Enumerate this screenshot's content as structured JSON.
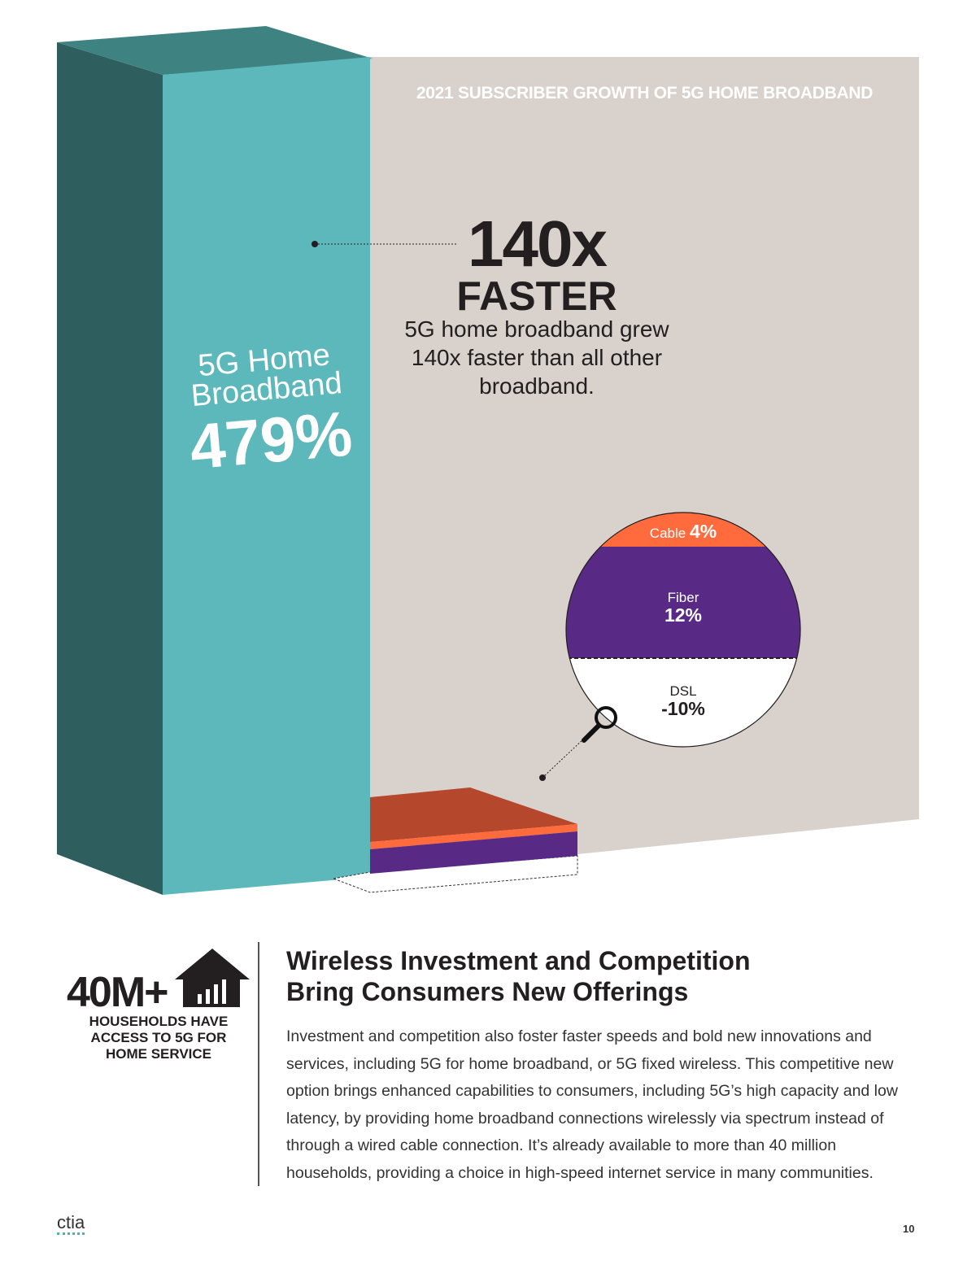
{
  "colors": {
    "teal_front": "#5cb8bb",
    "teal_side": "#2e5e5e",
    "teal_top": "#3e8282",
    "bg_panel": "#d8d1cc",
    "cable": "#ff6b3d",
    "fiber": "#582a86",
    "cable_top": "#b5472c",
    "dsl": "#ffffff"
  },
  "chart_data": {
    "type": "bar",
    "title": "2021 SUBSCRIBER GROWTH OF 5G HOME BROADBAND",
    "unit": "%",
    "categories": [
      "5G Home Broadband",
      "Cable",
      "Fiber",
      "DSL"
    ],
    "values": [
      479,
      4,
      12,
      -10
    ],
    "labels": {
      "fg": "5G Home Broadband",
      "fg_value": "479%",
      "cable": "Cable",
      "cable_value": "4%",
      "fiber": "Fiber",
      "fiber_value": "12%",
      "dsl": "DSL",
      "dsl_value": "-10%"
    },
    "annotation": {
      "headline": "140x",
      "sub": "FASTER",
      "text": "5G home broadband grew 140x faster than all other broadband."
    }
  },
  "stat": {
    "number": "40M+",
    "caption": "HOUSEHOLDS HAVE ACCESS TO 5G FOR HOME SERVICE"
  },
  "article": {
    "heading_line1": "Wireless Investment and Competition",
    "heading_line2": "Bring Consumers New Offerings",
    "body": "Investment and competition also foster faster speeds and bold new innovations and services, including 5G for home broadband, or 5G fixed wireless. This competitive new option brings enhanced capabilities to consumers, including 5G’s high capacity and low latency, by providing home broadband connections wirelessly via spectrum instead of through a wired cable connection. It’s already available to more than 40 million households, providing a choice in high-speed internet service in many communities."
  },
  "footer": {
    "logo": "ctia",
    "page": "10"
  }
}
